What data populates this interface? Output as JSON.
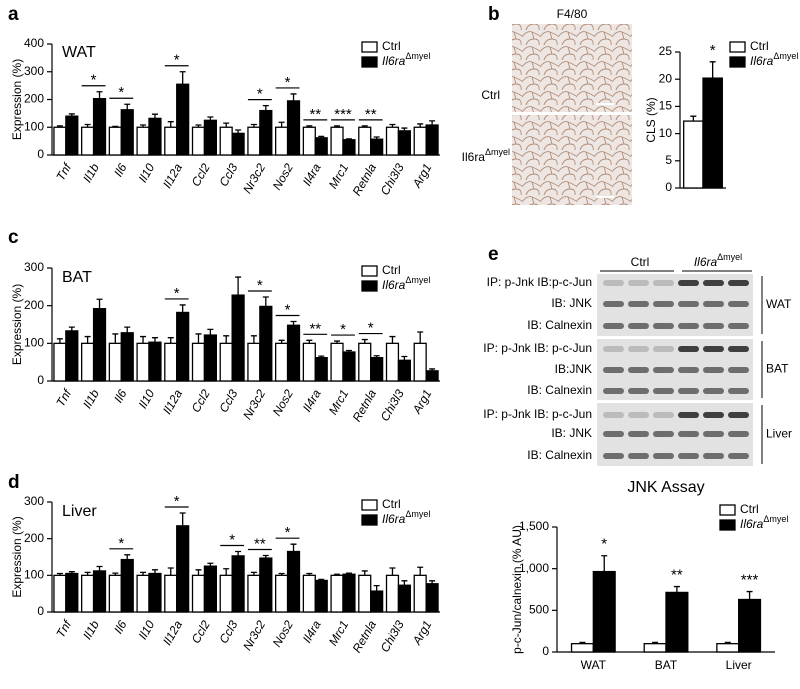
{
  "chart_data": [
    {
      "type": "bar",
      "panel": "a",
      "title": "WAT",
      "y_label": "Expression (%)",
      "category_style": "italic",
      "significance_bracket": true,
      "categories": [
        "Tnf",
        "Il1b",
        "Il6",
        "Il10",
        "Il12a",
        "Ccl2",
        "Ccl3",
        "Nr3c2",
        "Nos2",
        "Il4ra",
        "Mrc1",
        "Retnla",
        "Chi3l3",
        "Arg1"
      ],
      "series": [
        {
          "name": "Ctrl",
          "color": "#ffffff",
          "values": [
            100,
            100,
            100,
            100,
            100,
            100,
            100,
            100,
            100,
            100,
            100,
            100,
            100,
            100
          ],
          "errors": [
            5,
            10,
            3,
            8,
            20,
            8,
            15,
            10,
            18,
            5,
            5,
            5,
            10,
            12
          ]
        },
        {
          "name": "Il6ra",
          "name_superscript": "Δmyel",
          "color": "#000000",
          "values": [
            140,
            203,
            163,
            132,
            255,
            125,
            78,
            160,
            195,
            62,
            55,
            57,
            87,
            108
          ],
          "errors": [
            8,
            25,
            20,
            15,
            45,
            12,
            12,
            18,
            25,
            5,
            3,
            8,
            10,
            15
          ]
        }
      ],
      "significance": [
        null,
        "*",
        "*",
        null,
        "*",
        null,
        null,
        "*",
        "*",
        "**",
        "***",
        "**",
        null,
        null
      ],
      "ylim": [
        0,
        400
      ],
      "yticks": [
        0,
        100,
        200,
        300,
        400
      ],
      "legend": "upper right"
    },
    {
      "type": "bar",
      "panel": "b",
      "y_label": "CLS (%)",
      "categories": [
        null
      ],
      "series": [
        {
          "name": "Ctrl",
          "color": "#ffffff",
          "values": [
            12.3
          ],
          "errors": [
            0.9
          ]
        },
        {
          "name": "Il6ra",
          "name_superscript": "Δmyel",
          "color": "#000000",
          "values": [
            20.2
          ],
          "errors": [
            3
          ]
        }
      ],
      "significance": [
        "*"
      ],
      "ylim": [
        0,
        25
      ],
      "yticks": [
        0,
        5,
        10,
        15,
        20,
        25
      ],
      "legend": "upper right"
    },
    {
      "type": "bar",
      "panel": "c",
      "title": "BAT",
      "y_label": "Expression (%)",
      "category_style": "italic",
      "significance_bracket": true,
      "categories": [
        "Tnf",
        "Il1b",
        "Il6",
        "Il10",
        "Il12a",
        "Ccl2",
        "Ccl3",
        "Nr3c2",
        "Nos2",
        "Il4ra",
        "Mrc1",
        "Retnla",
        "Chi3l3",
        "Arg1"
      ],
      "series": [
        {
          "name": "Ctrl",
          "color": "#ffffff",
          "values": [
            100,
            100,
            100,
            100,
            100,
            100,
            100,
            100,
            100,
            100,
            100,
            100,
            100,
            100
          ],
          "errors": [
            12,
            18,
            25,
            18,
            15,
            25,
            20,
            20,
            8,
            8,
            6,
            10,
            18,
            30
          ]
        },
        {
          "name": "Il6ra",
          "name_superscript": "Δmyel",
          "color": "#000000",
          "values": [
            133,
            192,
            128,
            103,
            182,
            122,
            228,
            198,
            148,
            62,
            77,
            62,
            55,
            27
          ],
          "errors": [
            10,
            25,
            15,
            12,
            20,
            15,
            48,
            25,
            10,
            4,
            4,
            5,
            10,
            5
          ]
        }
      ],
      "significance": [
        null,
        null,
        null,
        null,
        "*",
        null,
        null,
        "*",
        "*",
        "**",
        "*",
        "*",
        null,
        null
      ],
      "ylim": [
        0,
        300
      ],
      "yticks": [
        0,
        100,
        200,
        300
      ],
      "legend": "upper right"
    },
    {
      "type": "bar",
      "panel": "d",
      "title": "Liver",
      "y_label": "Expression (%)",
      "category_style": "italic",
      "significance_bracket": true,
      "categories": [
        "Tnf",
        "Il1b",
        "Il6",
        "Il10",
        "Il12a",
        "Ccl2",
        "Ccl3",
        "Nr3c2",
        "Nos2",
        "Il4ra",
        "Mrc1",
        "Retnla",
        "Chi3l3",
        "Arg1"
      ],
      "series": [
        {
          "name": "Ctrl",
          "color": "#ffffff",
          "values": [
            100,
            100,
            100,
            100,
            100,
            100,
            100,
            100,
            100,
            100,
            100,
            100,
            100,
            100
          ],
          "errors": [
            5,
            8,
            6,
            8,
            20,
            15,
            18,
            8,
            5,
            5,
            3,
            12,
            20,
            22
          ]
        },
        {
          "name": "Il6ra",
          "name_superscript": "Δmyel",
          "color": "#000000",
          "values": [
            105,
            112,
            143,
            105,
            235,
            125,
            153,
            147,
            165,
            86,
            103,
            57,
            73,
            77
          ],
          "errors": [
            5,
            12,
            13,
            10,
            35,
            8,
            12,
            7,
            20,
            3,
            3,
            15,
            12,
            8
          ]
        }
      ],
      "significance": [
        null,
        null,
        "*",
        null,
        "*",
        null,
        "*",
        "**",
        "*",
        null,
        null,
        null,
        null,
        null
      ],
      "ylim": [
        0,
        300
      ],
      "yticks": [
        0,
        100,
        200,
        300
      ],
      "legend": "upper right"
    },
    {
      "type": "bar",
      "title": "JNK Assay",
      "y_label": "p-c-Jun/calnexin (% AU)",
      "categories": [
        "WAT",
        "BAT",
        "Liver"
      ],
      "series": [
        {
          "name": "Ctrl",
          "color": "#ffffff",
          "values": [
            100,
            100,
            100
          ],
          "errors": [
            15,
            15,
            15
          ]
        },
        {
          "name": "Il6ra",
          "name_superscript": "Δmyel",
          "color": "#000000",
          "values": [
            965,
            715,
            630
          ],
          "errors": [
            190,
            70,
            95
          ]
        }
      ],
      "significance": [
        "*",
        "**",
        "***"
      ],
      "ylim": [
        0,
        1500
      ],
      "yticks": [
        0,
        500,
        {
          "value": 1000,
          "label": "1,000"
        },
        {
          "value": 1500,
          "label": "1,500"
        }
      ],
      "legend": "upper right"
    }
  ],
  "micrograph": {
    "title": "F4/80",
    "labels": [
      {
        "text": "Ctrl"
      },
      {
        "text": "Il6ra",
        "superscript": "Δmyel"
      }
    ]
  },
  "blot": {
    "panel": "e",
    "columns": [
      {
        "text": "Ctrl"
      },
      {
        "text": "Il6ra",
        "superscript": "Δmyel"
      }
    ],
    "groups": [
      {
        "tissue": "WAT",
        "rows": [
          "IP: p-Jnk IB:p-c-Jun",
          "IB: JNK",
          "IB: Calnexin"
        ]
      },
      {
        "tissue": "BAT",
        "rows": [
          "IP: p-Jnk IB: p-c-Jun",
          "IB:JNK",
          "IB: Calnexin"
        ]
      },
      {
        "tissue": "Liver",
        "rows": [
          "IP: p-Jnk IB: p-c-Jun",
          "IB: JNK",
          "IB: Calnexin"
        ]
      }
    ]
  }
}
